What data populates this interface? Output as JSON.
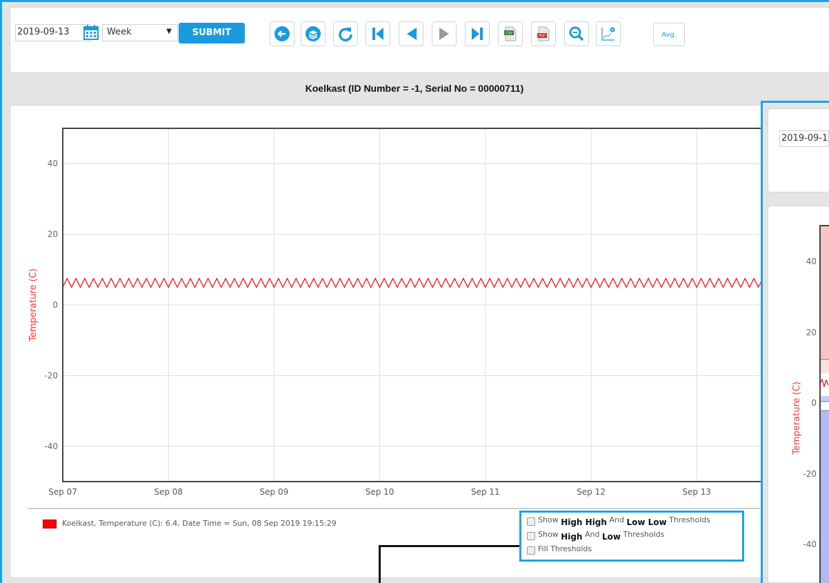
{
  "toolbar": {
    "date_value": "2019-09-13",
    "period_value": "Week",
    "submit_label": "SUBMIT",
    "avg_label": "Avg.",
    "buttons": [
      "back-icon",
      "layers-icon",
      "refresh-icon",
      "first-icon",
      "prev-icon",
      "next-icon",
      "last-icon",
      "csv-export-icon",
      "pdf-export-icon",
      "zoom-icon",
      "chart-settings-icon"
    ]
  },
  "title": "Koelkast (ID Number = -1, Serial No = 00000711)",
  "legend": {
    "color": "#ff0000",
    "text": "Koelkast, Temperature (C): 6.4, Date Time = Sun, 08 Sep 2019 19:15:29"
  },
  "thresholds": {
    "row1": {
      "pre": "Show",
      "a": "High High",
      "mid": "And",
      "b": "Low Low",
      "post": "Thresholds"
    },
    "row2": {
      "pre": "Show",
      "a": "High",
      "mid": "And",
      "b": "Low",
      "post": "Thresholds"
    },
    "row3": "Fill Thresholds"
  },
  "overlay": {
    "date_value": "2019-09-1",
    "ylabel": "Temperature (C)",
    "yticks": [
      "40",
      "20",
      "0",
      "-20",
      "-40"
    ]
  },
  "chart_data": {
    "type": "line",
    "title": "",
    "xlabel": "",
    "ylabel": "Temperature (C)",
    "ylim": [
      -50,
      50
    ],
    "yticks": [
      40,
      20,
      0,
      -20,
      -40
    ],
    "xticks": [
      "Sep 07",
      "Sep 08",
      "Sep 09",
      "Sep 10",
      "Sep 11",
      "Sep 12",
      "Sep 13"
    ],
    "grid": true,
    "series": [
      {
        "color": "#ff0000",
        "min": 5,
        "max": 7.5,
        "cycles_per_day": 12,
        "x_start": 0,
        "x_end": 7.2
      }
    ]
  }
}
